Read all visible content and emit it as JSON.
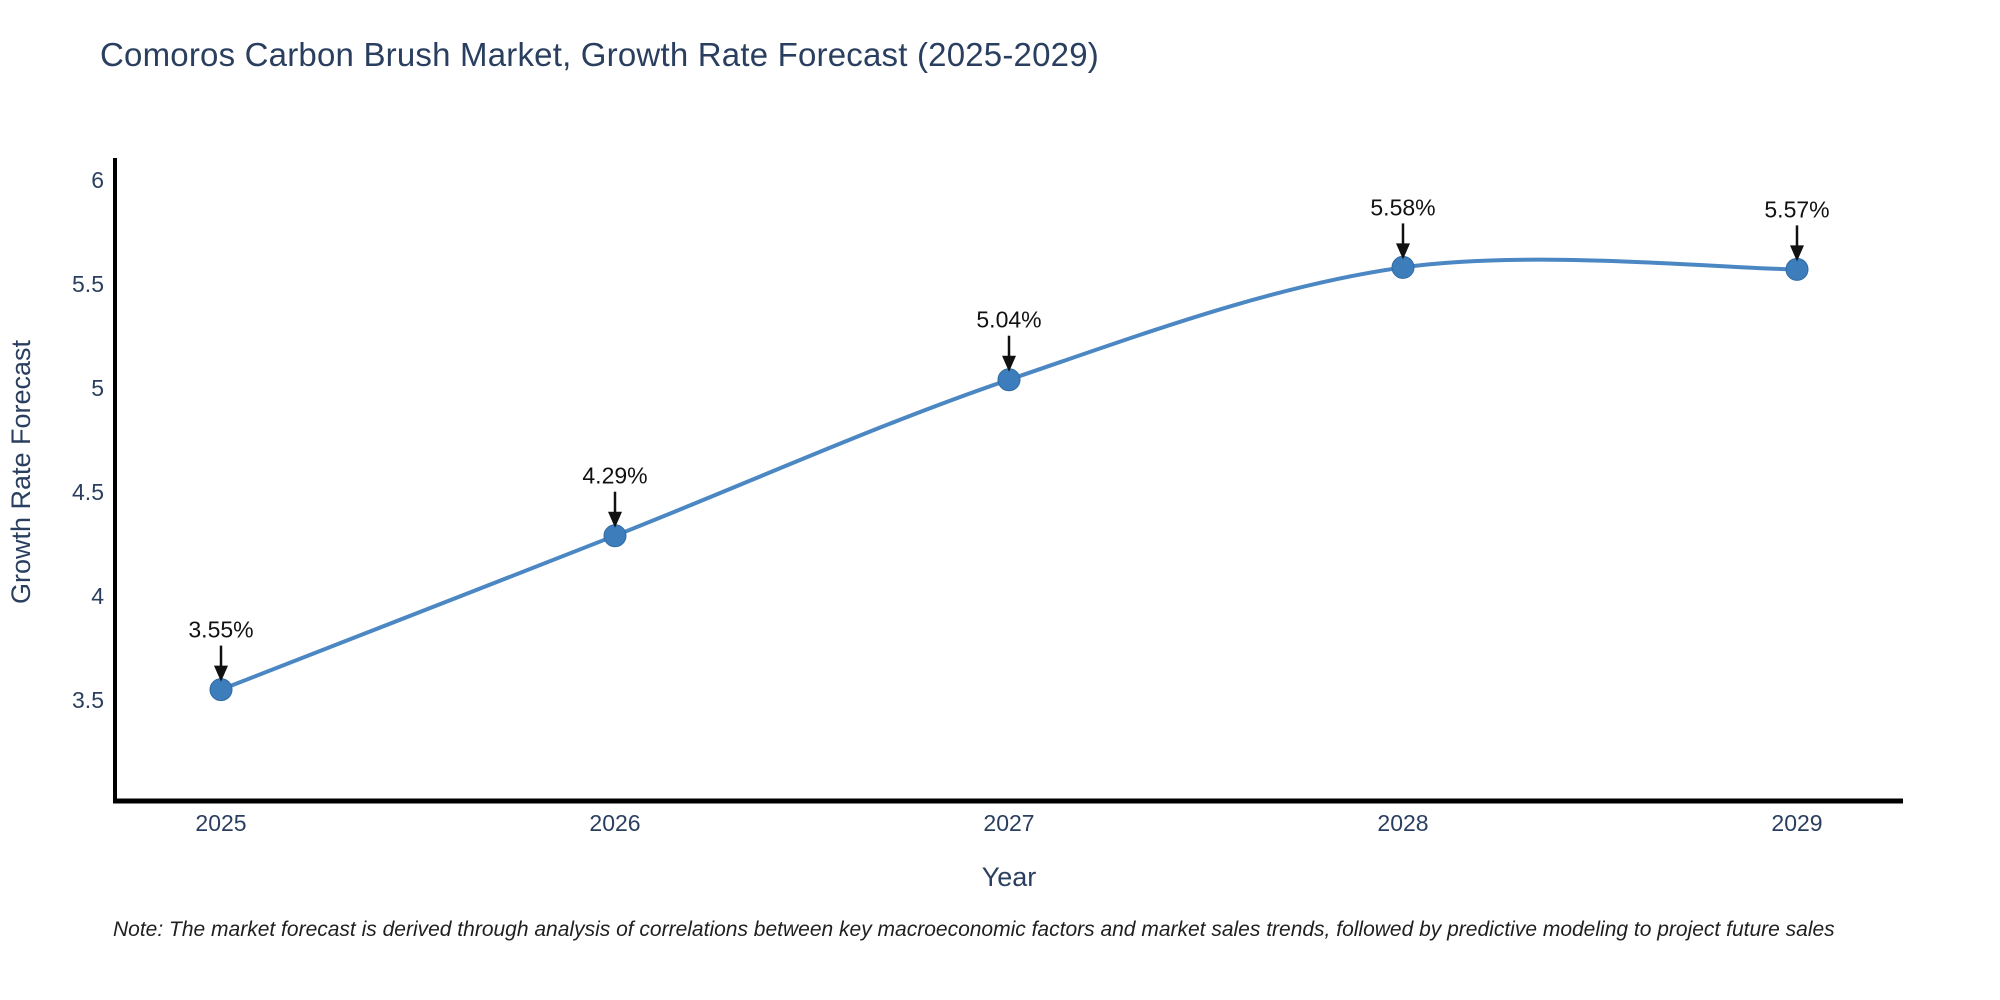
{
  "page": {
    "note": "Note: The market forecast is derived through analysis of correlations between key macroeconomic factors and market sales trends, followed by predictive modeling to project future sales"
  },
  "chart_data": {
    "type": "line",
    "title": "Comoros Carbon Brush Market, Growth Rate Forecast (2025-2029)",
    "xlabel": "Year",
    "ylabel": "Growth Rate Forecast",
    "categories": [
      2025,
      2026,
      2027,
      2028,
      2029
    ],
    "series": [
      {
        "name": "Growth Rate Forecast",
        "values": [
          3.55,
          4.29,
          5.04,
          5.58,
          5.57
        ],
        "point_labels": [
          "3.55%",
          "4.29%",
          "5.04%",
          "5.58%",
          "5.57%"
        ]
      }
    ],
    "line_shape": "spline",
    "markers": true,
    "grid": false,
    "legend_position": "none",
    "yticks": [
      6,
      5.5,
      5,
      4.5,
      4,
      3.5
    ],
    "ylim": [
      3.0,
      6.1
    ],
    "colors": {
      "line": "#4b87c2",
      "marker": "#3d7dbc",
      "marker_edge": "#2f6ba3",
      "axis_line": "#000000",
      "tick_text": "#2a3f5f",
      "axis_title_text": "#2a3f5f",
      "annotation_text": "#111111",
      "arrow": "#111111",
      "background": "#ffffff"
    }
  }
}
